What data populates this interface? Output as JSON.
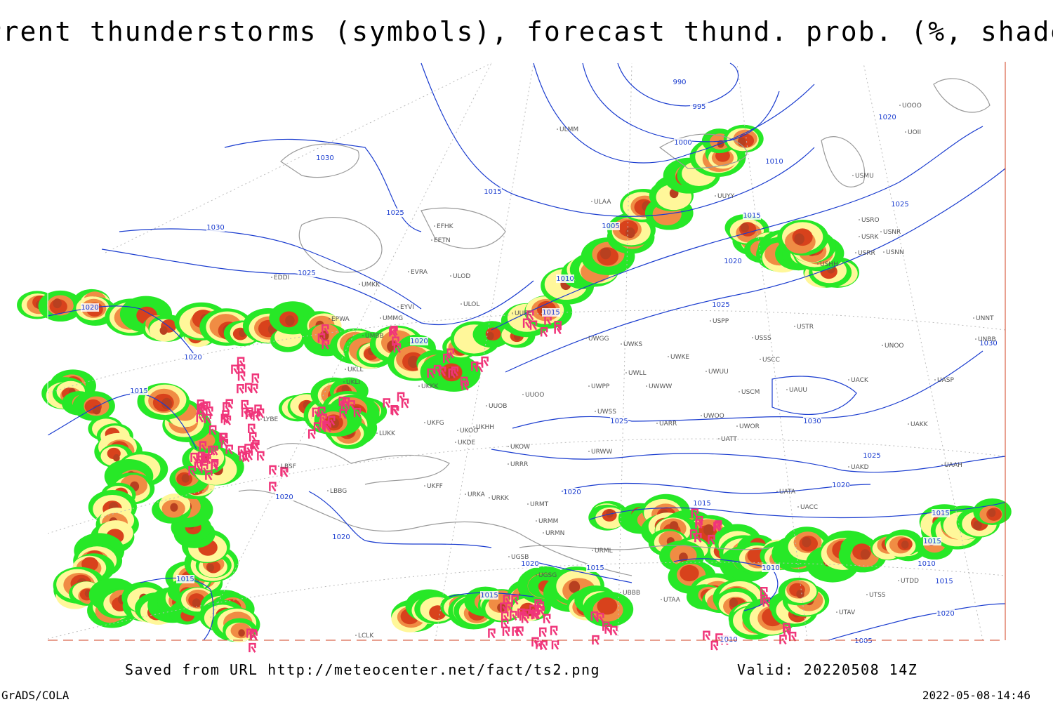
{
  "header": {
    "title": "Current thunderstorms (symbols), forecast thund. prob. (%, shaded)"
  },
  "map": {
    "isobar_labels": [
      990,
      995,
      1000,
      1010,
      1015,
      1020,
      1025,
      1005,
      1010,
      1015,
      1020,
      1025,
      1030,
      1030,
      1025,
      1025,
      1020,
      1020,
      1015,
      1015,
      1015,
      1010,
      1015,
      1020,
      1010,
      1015,
      1020,
      1015,
      1010,
      1005,
      1020,
      1020,
      1015,
      1015,
      1020,
      1020,
      1025,
      1025,
      1030,
      1030,
      1015,
      1020
    ],
    "stations": [
      "EFHK",
      "EETN",
      "EVRA",
      "ULOD",
      "ULOL",
      "EYVI",
      "UMKK",
      "EDDI",
      "EPWA",
      "UMMG",
      "UMBB",
      "UUEE",
      "UKLL",
      "UKLI",
      "UKKK",
      "UUOO",
      "UUOB",
      "UKFG",
      "UKOO",
      "UKHH",
      "UKDE",
      "LUKK",
      "LYBE",
      "UKOW",
      "URRR",
      "UKFF",
      "URKA",
      "URKK",
      "URMT",
      "URMM",
      "URMN",
      "UGSB",
      "UGSG",
      "URML",
      "UBBB",
      "UTAA",
      "UATA",
      "UACC",
      "UTAV",
      "UTSS",
      "UTDD",
      "LBBG",
      "LBSF",
      "LCLK",
      "ULAA",
      "ULMM",
      "UUYY",
      "USMU",
      "USRR",
      "USNN",
      "USRK",
      "USNR",
      "USRO",
      "USHH",
      "USPP",
      "USTR",
      "USSS",
      "USCC",
      "UNOO",
      "UNBB",
      "UNNT",
      "UACK",
      "UASP",
      "USCM",
      "UAUU",
      "UAKK",
      "UWGG",
      "UWKS",
      "UWKE",
      "UWUU",
      "UWLL",
      "UWWW",
      "UWPP",
      "UWSS",
      "UARR",
      "UWOO",
      "UWOR",
      "UATT",
      "URWW",
      "UAKD",
      "UAAH",
      "UOOO",
      "UOII"
    ]
  },
  "footer": {
    "source": "Saved from URL http://meteocenter.net/fact/ts2.png",
    "valid": "Valid: 20220508 14Z",
    "credit": "GrADS/COLA",
    "timestamp": "2022-05-08-14:46"
  }
}
